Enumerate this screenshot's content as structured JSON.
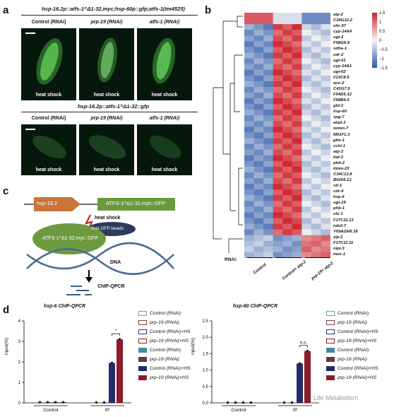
{
  "panel_labels": {
    "a": "a",
    "b": "b",
    "c": "c",
    "d": "d"
  },
  "panel_a": {
    "row1_genotype": "hsp-16.2p::atfs-1^Δ1-32,myc;hsp-60p::gfp;atfs-1(tm4525)",
    "row2_genotype": "hsp-16.2p::atfs-1^Δ1-32::gfp",
    "conditions": [
      "Control (RNAi)",
      "prp-19 (RNAi)",
      "atfs-1 (RNAi)"
    ],
    "caption": "heat shock"
  },
  "panel_b": {
    "genes": [
      "atp-2",
      "C30G12.2",
      "nhr-57",
      "cyp-14A4",
      "ugt-2",
      "F58G6.9",
      "sdha-1",
      "cdr-2",
      "ugt-61",
      "cyp-14A1",
      "ugt-62",
      "F23C8.5",
      "aco-2",
      "C41G7.9",
      "F54D5.12",
      "F58B4.5",
      "gld-3",
      "hsp-60",
      "spg-7",
      "atad-3",
      "tomm-7",
      "M01F1.3",
      "gfm-1",
      "cchl-1",
      "atp-3",
      "haf-3",
      "phb-2",
      "timm-23",
      "C34C12.8",
      "B0205.13",
      "stl-1",
      "cdr-4",
      "hsp-6",
      "ugt-19",
      "phb-1",
      "clu-1",
      "F17C11.13",
      "nduf-7",
      "Y69A2AR.18",
      "zip-2",
      "F17C11.11",
      "nipi-3",
      "mex-1"
    ],
    "rnai_label": "RNAi:",
    "groups": [
      "Control",
      "Control+ atp-2",
      "prp-19+ atp-2"
    ],
    "scale_ticks": [
      "1.5",
      "1",
      "0.5",
      "0",
      "−0.5",
      "−1",
      "−1.5"
    ],
    "colors": {
      "high": "#d0222c",
      "mid": "#f4f4f4",
      "low": "#2b58a8"
    }
  },
  "panel_c": {
    "promoter": "hsp-16.2",
    "construct": "ATFS-1^Δ1-32,myc::GFP",
    "heat_shock": "heat shock",
    "beads": "Anti-GFP beads",
    "protein": "ATFS-1^Δ1-32,myc::GFP",
    "dna": "DNA",
    "assay": "ChIP-QPCR"
  },
  "panel_d": {
    "ylabel": "input(%)",
    "legend": [
      {
        "label": "Control (RNAi)",
        "color": "#56a7b3",
        "fill": "none"
      },
      {
        "label": "prp-19 (RNAi)",
        "color": "#7c3a48",
        "fill": "none"
      },
      {
        "label": "Control (RNAi)+HS",
        "color": "#2a3470",
        "fill": "none"
      },
      {
        "label": "prp-19 (RNAi)+HS",
        "color": "#8b1a2a",
        "fill": "none"
      },
      {
        "label": "Control (RNAi)",
        "color": "#3b8f9c",
        "fill": "solid"
      },
      {
        "label": "prp-19 (RNAi)",
        "color": "#6b3342",
        "fill": "solid"
      },
      {
        "label": "Control (RNAi)+HS",
        "color": "#232c66",
        "fill": "solid"
      },
      {
        "label": "prp-19 (RNAi)+HS",
        "color": "#8e1b2b",
        "fill": "solid"
      }
    ],
    "watermark": "Life Metabolism"
  },
  "chart_data": [
    {
      "type": "bar",
      "title": "hsp-6 ChIP-QPCR",
      "ylabel": "input(%)",
      "ylim": [
        0,
        4
      ],
      "yticks": [
        0,
        1,
        2,
        3,
        4
      ],
      "groups": [
        "Control",
        "IP"
      ],
      "series": [
        {
          "name": "Control (RNAi)",
          "values": [
            0.03,
            0.02
          ]
        },
        {
          "name": "prp-19 (RNAi)",
          "values": [
            0.03,
            0.02
          ]
        },
        {
          "name": "Control (RNAi)+HS",
          "values": [
            0.03,
            1.95
          ]
        },
        {
          "name": "prp-19 (RNAi)+HS",
          "values": [
            0.03,
            3.1
          ]
        }
      ],
      "significance": "*"
    },
    {
      "type": "bar",
      "title": "hsp-60 ChIP-QPCR",
      "ylabel": "input(%)",
      "ylim": [
        0,
        2.5
      ],
      "yticks": [
        0.0,
        0.5,
        1.0,
        1.5,
        2.0,
        2.5
      ],
      "groups": [
        "Control",
        "IP"
      ],
      "series": [
        {
          "name": "Control (RNAi)",
          "values": [
            0.01,
            0.01
          ]
        },
        {
          "name": "prp-19 (RNAi)",
          "values": [
            0.01,
            0.01
          ]
        },
        {
          "name": "Control (RNAi)+HS",
          "values": [
            0.01,
            1.2
          ]
        },
        {
          "name": "prp-19 (RNAi)+HS",
          "values": [
            0.01,
            1.58
          ]
        }
      ],
      "significance": "n.s."
    }
  ]
}
